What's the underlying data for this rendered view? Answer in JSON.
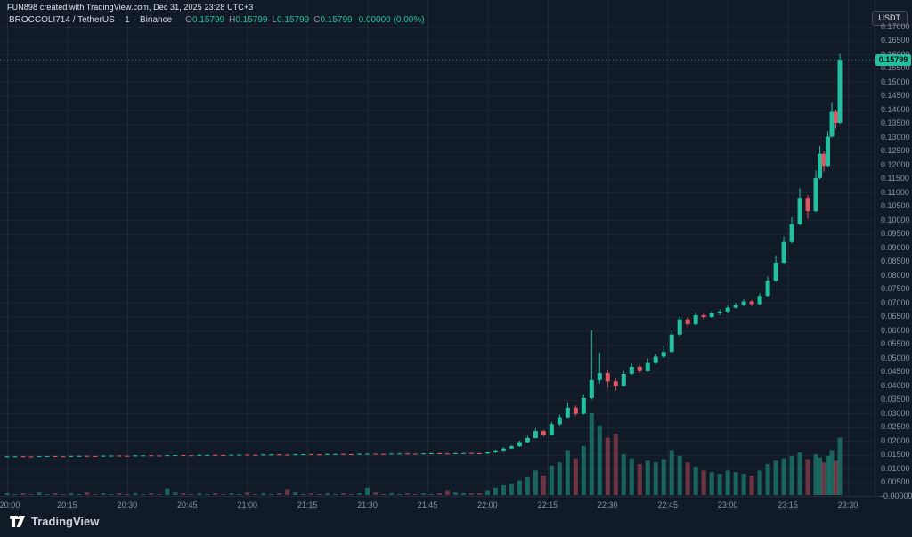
{
  "header": {
    "attribution": "FUN898 created with TradingView.com, Dec 31, 2025 23:28 UTC+3"
  },
  "legend": {
    "symbol": "BROCCOLI714 / TetherUS",
    "separator": "·",
    "interval": "1",
    "exchange": "Binance",
    "o_label": "O",
    "o": "0.15799",
    "h_label": "H",
    "h": "0.15799",
    "l_label": "L",
    "l": "0.15799",
    "c_label": "C",
    "c": "0.15799",
    "change": "0.00000 (0.00%)"
  },
  "currency_button": {
    "label": "USDT"
  },
  "footer": {
    "logo_text": "TradingView"
  },
  "colors": {
    "background": "#111b27",
    "up": "#23bfa0",
    "down": "#e25563",
    "grid_v": "rgba(255,255,255,0.06)",
    "grid_h": "rgba(255,255,255,0.04)",
    "axis_text": "#8b93a1",
    "tag_bg": "#23bfa0",
    "tag_text": "#0b1116"
  },
  "chart_data": {
    "type": "candlestick+volume",
    "title": "BROCCOLI714/TetherUS 1m Binance",
    "ylim": [
      0,
      0.17
    ],
    "last_price": 0.15799,
    "last_price_label": "0.15799",
    "legend_position": "top-left",
    "grid": true,
    "candles_format": [
      "t_minutes_after_20:00",
      "open",
      "high",
      "low",
      "close",
      "volume_relative_0_100"
    ],
    "price_ticks": [
      {
        "p": 0.17,
        "label": "0.17000"
      },
      {
        "p": 0.165,
        "label": "0.16500"
      },
      {
        "p": 0.16,
        "label": "0.16000"
      },
      {
        "p": 0.155,
        "label": "0.15500"
      },
      {
        "p": 0.15,
        "label": "0.15000"
      },
      {
        "p": 0.145,
        "label": "0.14500"
      },
      {
        "p": 0.14,
        "label": "0.14000"
      },
      {
        "p": 0.135,
        "label": "0.13500"
      },
      {
        "p": 0.13,
        "label": "0.13000"
      },
      {
        "p": 0.125,
        "label": "0.12500"
      },
      {
        "p": 0.12,
        "label": "0.12000"
      },
      {
        "p": 0.115,
        "label": "0.11500"
      },
      {
        "p": 0.11,
        "label": "0.11000"
      },
      {
        "p": 0.105,
        "label": "0.10500"
      },
      {
        "p": 0.1,
        "label": "0.10000"
      },
      {
        "p": 0.095,
        "label": "0.09500"
      },
      {
        "p": 0.09,
        "label": "0.09000"
      },
      {
        "p": 0.085,
        "label": "0.08500"
      },
      {
        "p": 0.08,
        "label": "0.08000"
      },
      {
        "p": 0.075,
        "label": "0.07500"
      },
      {
        "p": 0.07,
        "label": "0.07000"
      },
      {
        "p": 0.065,
        "label": "0.06500"
      },
      {
        "p": 0.06,
        "label": "0.06000"
      },
      {
        "p": 0.055,
        "label": "0.05500"
      },
      {
        "p": 0.05,
        "label": "0.05000"
      },
      {
        "p": 0.045,
        "label": "0.04500"
      },
      {
        "p": 0.04,
        "label": "0.04000"
      },
      {
        "p": 0.035,
        "label": "0.03500"
      },
      {
        "p": 0.03,
        "label": "0.03000"
      },
      {
        "p": 0.025,
        "label": "0.02500"
      },
      {
        "p": 0.02,
        "label": "0.02000"
      },
      {
        "p": 0.015,
        "label": "0.01500"
      },
      {
        "p": 0.01,
        "label": "0.01000"
      },
      {
        "p": 0.005,
        "label": "0.00500"
      },
      {
        "p": 0.0,
        "label": "-0.00000"
      }
    ],
    "time_ticks": [
      {
        "m": 0,
        "label": "20:00"
      },
      {
        "m": 15,
        "label": "20:15"
      },
      {
        "m": 30,
        "label": "20:30"
      },
      {
        "m": 45,
        "label": "20:45"
      },
      {
        "m": 60,
        "label": "21:00"
      },
      {
        "m": 75,
        "label": "21:15"
      },
      {
        "m": 90,
        "label": "21:30"
      },
      {
        "m": 105,
        "label": "21:45"
      },
      {
        "m": 120,
        "label": "22:00"
      },
      {
        "m": 135,
        "label": "22:15"
      },
      {
        "m": 150,
        "label": "22:30"
      },
      {
        "m": 165,
        "label": "22:45"
      },
      {
        "m": 180,
        "label": "23:00"
      },
      {
        "m": 195,
        "label": "23:15"
      },
      {
        "m": 210,
        "label": "23:30"
      }
    ],
    "candles": [
      [
        0,
        0.0142,
        0.0145,
        0.0141,
        0.0144,
        2
      ],
      [
        2,
        0.01432,
        0.01452,
        0.01422,
        0.01442,
        1
      ],
      [
        4,
        0.01444,
        0.01454,
        0.01414,
        0.01424,
        2
      ],
      [
        6,
        0.01436,
        0.01446,
        0.01416,
        0.01426,
        1
      ],
      [
        8,
        0.01428,
        0.01458,
        0.01418,
        0.01448,
        3
      ],
      [
        10,
        0.0144,
        0.0146,
        0.0143,
        0.0145,
        1
      ],
      [
        12,
        0.01452,
        0.01462,
        0.01422,
        0.01432,
        2
      ],
      [
        14,
        0.01444,
        0.01454,
        0.01424,
        0.01434,
        1
      ],
      [
        16,
        0.01436,
        0.01466,
        0.01426,
        0.01456,
        2
      ],
      [
        18,
        0.01448,
        0.01468,
        0.01438,
        0.01458,
        1
      ],
      [
        20,
        0.0146,
        0.0147,
        0.0143,
        0.0144,
        3
      ],
      [
        22,
        0.01452,
        0.01462,
        0.01432,
        0.01442,
        1
      ],
      [
        24,
        0.01444,
        0.01474,
        0.01434,
        0.01464,
        2
      ],
      [
        26,
        0.01456,
        0.01476,
        0.01446,
        0.01466,
        1
      ],
      [
        28,
        0.01468,
        0.01478,
        0.01438,
        0.01448,
        2
      ],
      [
        30,
        0.0146,
        0.0147,
        0.0144,
        0.0145,
        1
      ],
      [
        32,
        0.01452,
        0.01482,
        0.01442,
        0.01472,
        2
      ],
      [
        34,
        0.01464,
        0.01484,
        0.01454,
        0.01474,
        1
      ],
      [
        36,
        0.01476,
        0.01486,
        0.01446,
        0.01456,
        2
      ],
      [
        38,
        0.01468,
        0.01478,
        0.01448,
        0.01458,
        1
      ],
      [
        40,
        0.0146,
        0.0149,
        0.0145,
        0.0148,
        8
      ],
      [
        42,
        0.01472,
        0.01492,
        0.01462,
        0.01482,
        3
      ],
      [
        44,
        0.01484,
        0.01494,
        0.01454,
        0.01464,
        2
      ],
      [
        46,
        0.01476,
        0.01486,
        0.01456,
        0.01466,
        1
      ],
      [
        48,
        0.01468,
        0.01498,
        0.01458,
        0.01488,
        2
      ],
      [
        50,
        0.0148,
        0.015,
        0.0147,
        0.0149,
        1
      ],
      [
        52,
        0.01492,
        0.01502,
        0.01462,
        0.01472,
        2
      ],
      [
        54,
        0.01484,
        0.01494,
        0.01464,
        0.01474,
        1
      ],
      [
        56,
        0.01476,
        0.01506,
        0.01466,
        0.01496,
        2
      ],
      [
        58,
        0.01488,
        0.01508,
        0.01478,
        0.01498,
        1
      ],
      [
        60,
        0.015,
        0.0151,
        0.0147,
        0.0148,
        3
      ],
      [
        62,
        0.01492,
        0.01502,
        0.01472,
        0.01482,
        1
      ],
      [
        64,
        0.01484,
        0.01514,
        0.01474,
        0.01504,
        2
      ],
      [
        66,
        0.01496,
        0.01516,
        0.01486,
        0.01506,
        1
      ],
      [
        68,
        0.01508,
        0.01518,
        0.01478,
        0.01488,
        2
      ],
      [
        70,
        0.015,
        0.0151,
        0.0148,
        0.0149,
        7
      ],
      [
        72,
        0.01492,
        0.01522,
        0.01482,
        0.01512,
        3
      ],
      [
        74,
        0.01504,
        0.01524,
        0.01494,
        0.01514,
        1
      ],
      [
        76,
        0.01516,
        0.01526,
        0.01486,
        0.01496,
        2
      ],
      [
        78,
        0.01508,
        0.01518,
        0.01488,
        0.01498,
        1
      ],
      [
        80,
        0.015,
        0.0153,
        0.0149,
        0.0152,
        2
      ],
      [
        82,
        0.01512,
        0.01532,
        0.01502,
        0.01522,
        1
      ],
      [
        84,
        0.01524,
        0.01534,
        0.01494,
        0.01504,
        2
      ],
      [
        86,
        0.01516,
        0.01526,
        0.01496,
        0.01506,
        1
      ],
      [
        88,
        0.01508,
        0.01538,
        0.01498,
        0.01528,
        2
      ],
      [
        90,
        0.0152,
        0.0154,
        0.0151,
        0.0153,
        9
      ],
      [
        92,
        0.01532,
        0.01542,
        0.01502,
        0.01512,
        3
      ],
      [
        94,
        0.01524,
        0.01534,
        0.01504,
        0.01514,
        1
      ],
      [
        96,
        0.01516,
        0.01546,
        0.01506,
        0.01536,
        2
      ],
      [
        98,
        0.01528,
        0.01548,
        0.01518,
        0.01538,
        1
      ],
      [
        100,
        0.0154,
        0.0155,
        0.0151,
        0.0152,
        2
      ],
      [
        102,
        0.01532,
        0.01542,
        0.01512,
        0.01522,
        1
      ],
      [
        104,
        0.01524,
        0.01554,
        0.01514,
        0.01544,
        2
      ],
      [
        106,
        0.01536,
        0.01556,
        0.01526,
        0.01546,
        1
      ],
      [
        108,
        0.01548,
        0.01558,
        0.01518,
        0.01528,
        2
      ],
      [
        110,
        0.0154,
        0.0155,
        0.0152,
        0.0153,
        6
      ],
      [
        112,
        0.01532,
        0.01562,
        0.01522,
        0.01552,
        3
      ],
      [
        114,
        0.01544,
        0.01564,
        0.01534,
        0.01554,
        2
      ],
      [
        116,
        0.01556,
        0.01566,
        0.01526,
        0.01536,
        2
      ],
      [
        118,
        0.01548,
        0.01558,
        0.01528,
        0.01538,
        2
      ],
      [
        120,
        0.0154,
        0.016,
        0.0152,
        0.0158,
        6
      ],
      [
        122,
        0.0158,
        0.0168,
        0.0156,
        0.0165,
        9
      ],
      [
        124,
        0.0165,
        0.0176,
        0.0163,
        0.0172,
        12
      ],
      [
        126,
        0.0172,
        0.0185,
        0.017,
        0.018,
        14
      ],
      [
        128,
        0.018,
        0.02,
        0.0178,
        0.0195,
        18
      ],
      [
        130,
        0.0195,
        0.0218,
        0.0192,
        0.021,
        22
      ],
      [
        132,
        0.021,
        0.0245,
        0.0208,
        0.0235,
        30
      ],
      [
        134,
        0.0235,
        0.024,
        0.0215,
        0.0222,
        24
      ],
      [
        136,
        0.0222,
        0.0268,
        0.022,
        0.026,
        36
      ],
      [
        138,
        0.026,
        0.0295,
        0.0255,
        0.0285,
        40
      ],
      [
        140,
        0.0285,
        0.034,
        0.0282,
        0.032,
        55
      ],
      [
        142,
        0.032,
        0.0328,
        0.029,
        0.0298,
        45
      ],
      [
        144,
        0.0298,
        0.0368,
        0.0295,
        0.0355,
        60
      ],
      [
        146,
        0.0355,
        0.06,
        0.035,
        0.042,
        100
      ],
      [
        148,
        0.042,
        0.052,
        0.0408,
        0.0445,
        85
      ],
      [
        150,
        0.0445,
        0.0455,
        0.0392,
        0.0415,
        70
      ],
      [
        152,
        0.0415,
        0.0428,
        0.0382,
        0.0398,
        75
      ],
      [
        154,
        0.0398,
        0.0452,
        0.0395,
        0.0442,
        50
      ],
      [
        156,
        0.0442,
        0.048,
        0.0438,
        0.0468,
        45
      ],
      [
        158,
        0.0468,
        0.0475,
        0.0445,
        0.0452,
        38
      ],
      [
        160,
        0.0452,
        0.0498,
        0.045,
        0.0482,
        42
      ],
      [
        162,
        0.0482,
        0.0515,
        0.0478,
        0.0505,
        40
      ],
      [
        164,
        0.0505,
        0.0545,
        0.05,
        0.0522,
        44
      ],
      [
        166,
        0.0522,
        0.06,
        0.052,
        0.0585,
        55
      ],
      [
        168,
        0.0585,
        0.0652,
        0.058,
        0.064,
        48
      ],
      [
        170,
        0.064,
        0.0648,
        0.061,
        0.0622,
        40
      ],
      [
        172,
        0.0622,
        0.0665,
        0.0618,
        0.0655,
        35
      ],
      [
        174,
        0.0655,
        0.0662,
        0.064,
        0.0648,
        30
      ],
      [
        176,
        0.0648,
        0.067,
        0.0645,
        0.0662,
        28
      ],
      [
        178,
        0.0662,
        0.0676,
        0.0655,
        0.0668,
        26
      ],
      [
        180,
        0.0668,
        0.069,
        0.0662,
        0.0682,
        30
      ],
      [
        182,
        0.0682,
        0.07,
        0.0678,
        0.0692,
        28
      ],
      [
        184,
        0.0692,
        0.0712,
        0.0688,
        0.0705,
        26
      ],
      [
        186,
        0.0705,
        0.071,
        0.0688,
        0.0695,
        24
      ],
      [
        188,
        0.0695,
        0.0735,
        0.0692,
        0.0725,
        30
      ],
      [
        190,
        0.0725,
        0.0795,
        0.0722,
        0.078,
        38
      ],
      [
        192,
        0.078,
        0.087,
        0.0775,
        0.0845,
        42
      ],
      [
        194,
        0.0845,
        0.094,
        0.084,
        0.092,
        45
      ],
      [
        196,
        0.092,
        0.101,
        0.0915,
        0.0985,
        48
      ],
      [
        198,
        0.0985,
        0.1115,
        0.098,
        0.108,
        52
      ],
      [
        200,
        0.108,
        0.109,
        0.1005,
        0.1032,
        44
      ],
      [
        202,
        0.1032,
        0.118,
        0.1028,
        0.1152,
        50
      ],
      [
        203,
        0.1152,
        0.1268,
        0.1148,
        0.124,
        46
      ],
      [
        204,
        0.124,
        0.1248,
        0.1175,
        0.1196,
        40
      ],
      [
        205,
        0.1196,
        0.1322,
        0.1192,
        0.1302,
        48
      ],
      [
        206,
        0.1302,
        0.1425,
        0.1298,
        0.1392,
        55
      ],
      [
        207,
        0.1392,
        0.14,
        0.133,
        0.1352,
        42
      ],
      [
        208,
        0.1352,
        0.1602,
        0.1348,
        0.15799,
        70
      ]
    ]
  }
}
